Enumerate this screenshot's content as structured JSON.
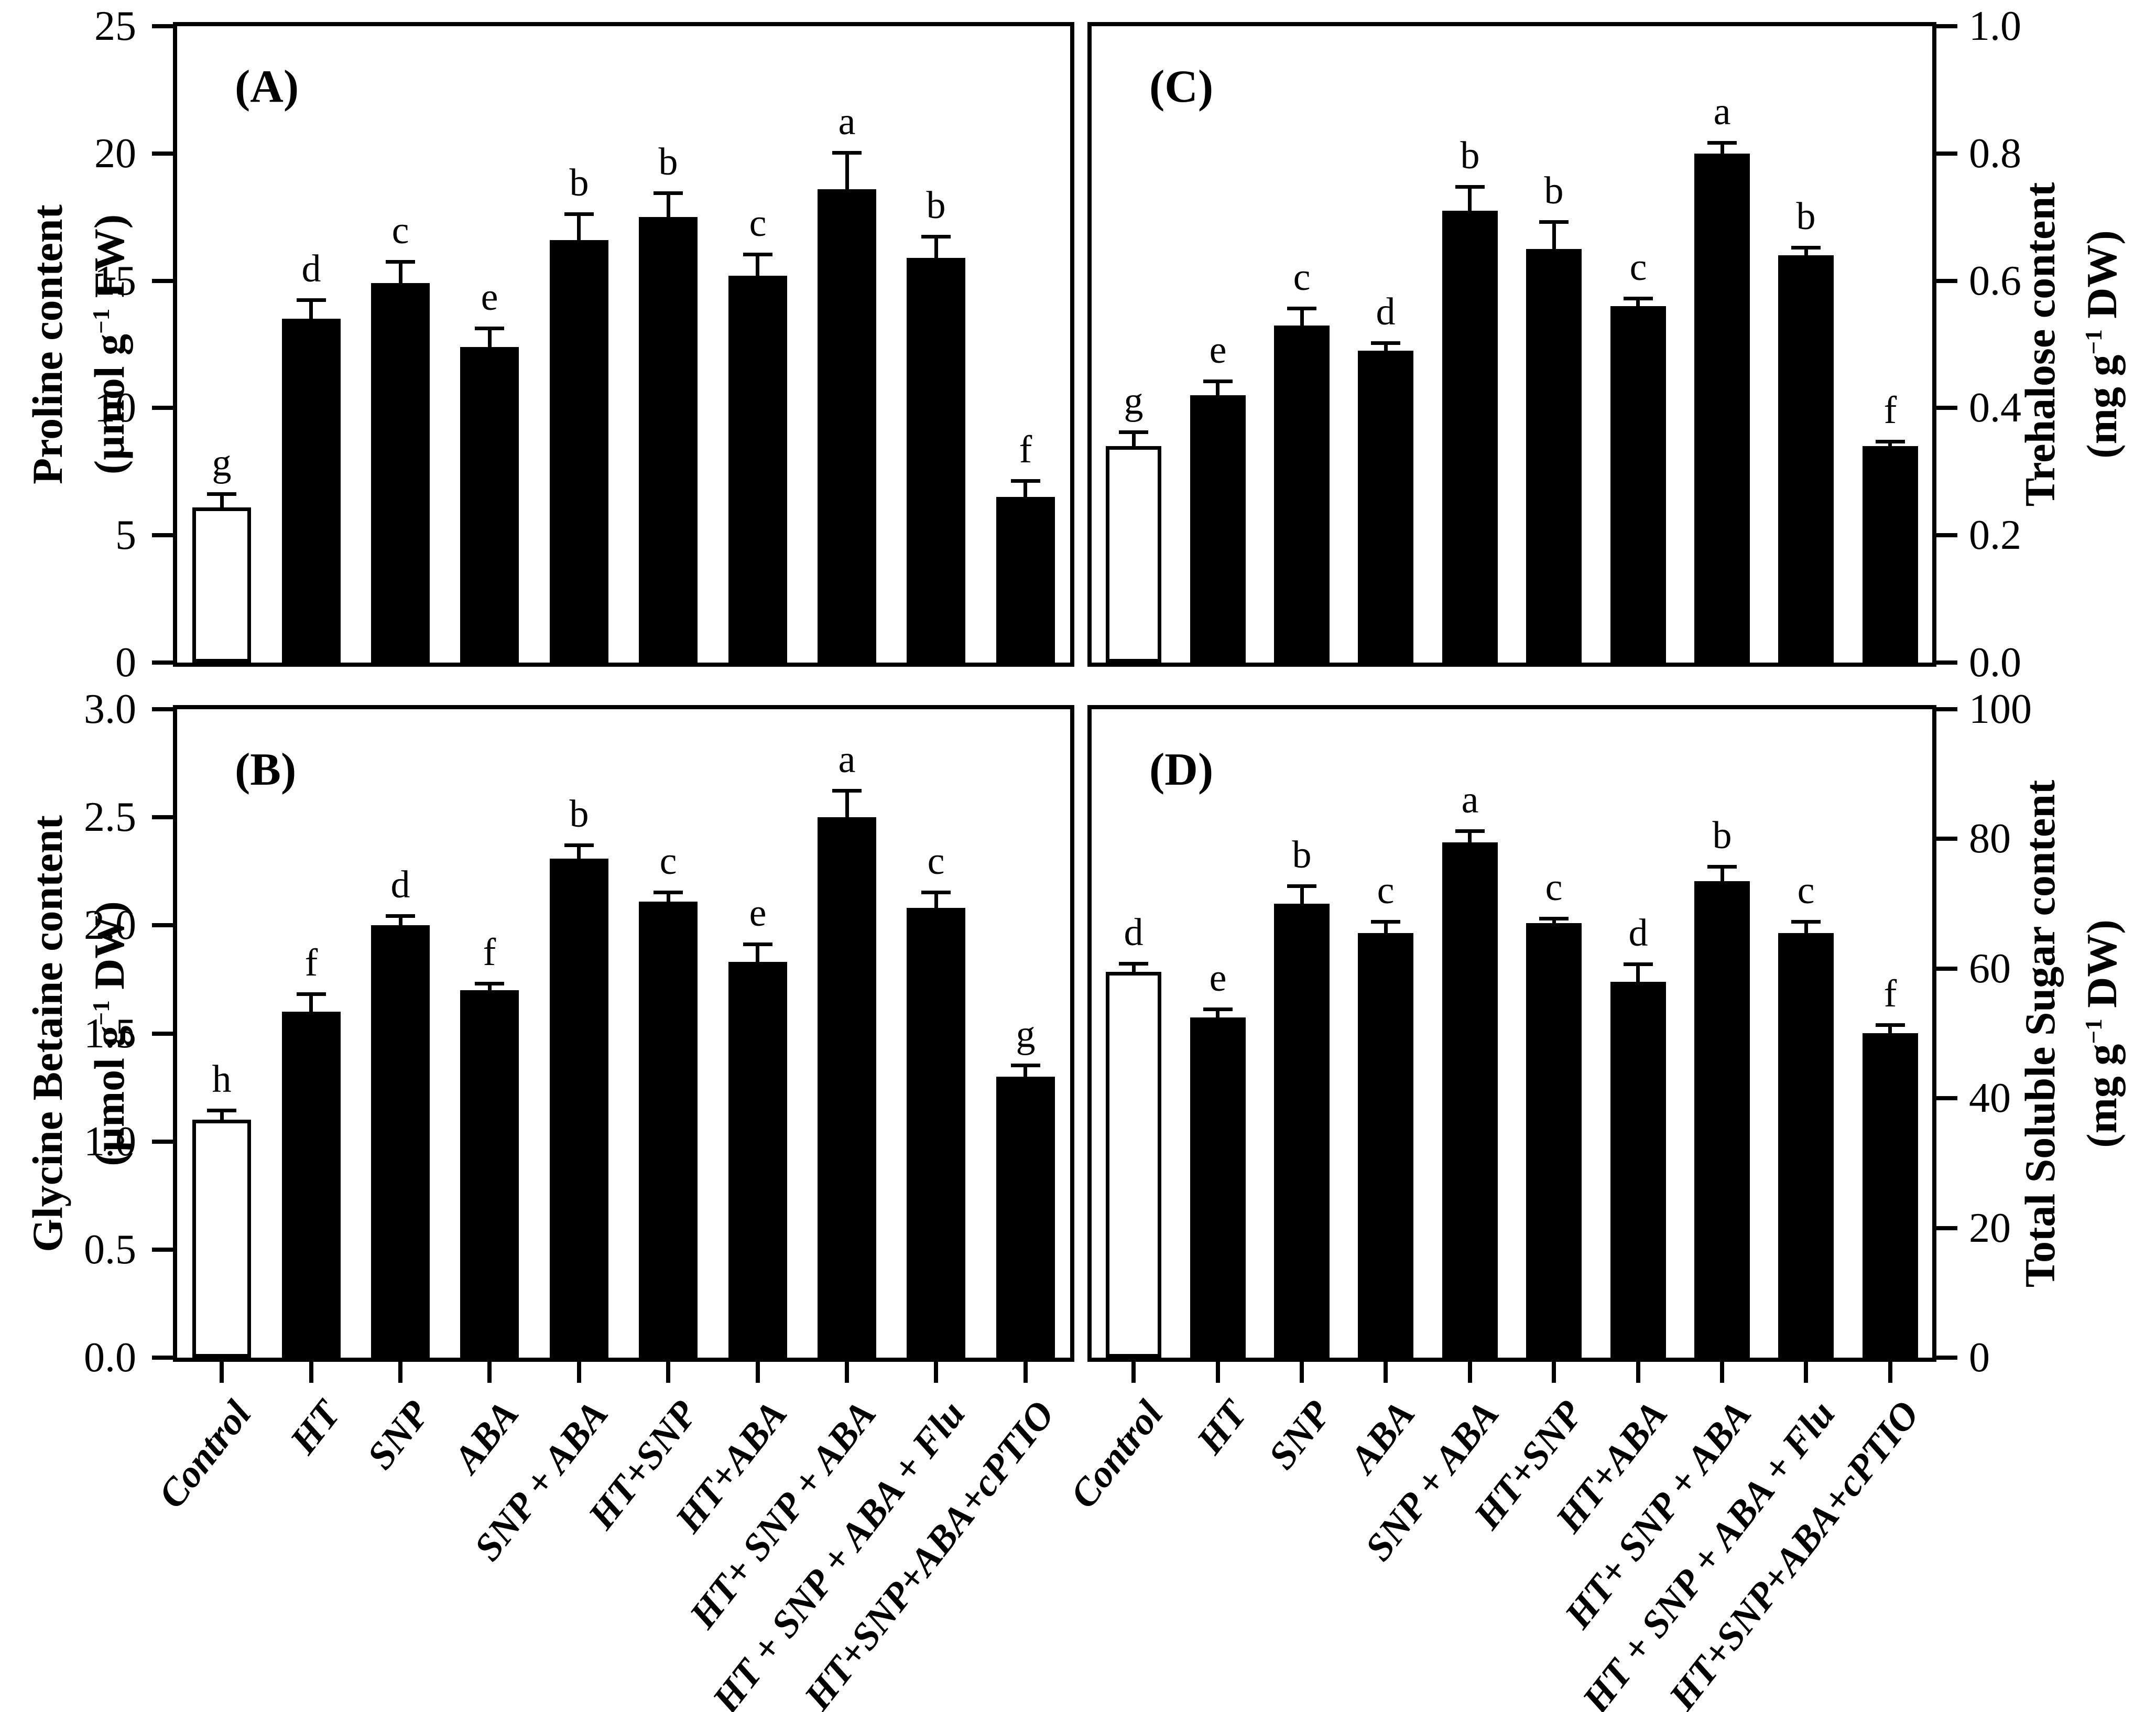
{
  "figure": {
    "background": "#ffffff",
    "frame_color": "#000000",
    "bar_fill": "#000000",
    "control_bar_fill": "#ffffff",
    "x_label_angle_deg": 52
  },
  "chart_data": [
    {
      "type": "bar",
      "id": "A",
      "panel_label": "(A)",
      "ylabel_line1": "Proline content",
      "unit_pre": "(µmol g",
      "unit_sup": "−1",
      "unit_post": " FW)",
      "axis_side": "left",
      "ylim": [
        0,
        25
      ],
      "tick_values": [
        0,
        5,
        10,
        15,
        20,
        25
      ],
      "tick_labels": [
        "0",
        "5",
        "10",
        "15",
        "20",
        "25"
      ],
      "categories": [
        "Control",
        "HT",
        "SNP",
        "ABA",
        "SNP + ABA",
        "HT+SNP",
        "HT+ABA",
        "HT+ SNP + ABA",
        "HT + SNP + ABA + Flu",
        "HT+SNP+ABA+cPTIO"
      ],
      "values": [
        6.1,
        13.5,
        14.9,
        12.4,
        16.6,
        17.5,
        15.2,
        18.6,
        15.9,
        6.5
      ],
      "errors": [
        0.6,
        0.8,
        0.9,
        0.8,
        1.1,
        1.0,
        0.9,
        1.5,
        0.9,
        0.7
      ],
      "sig_letters": [
        "g",
        "d",
        "c",
        "e",
        "b",
        "b",
        "c",
        "a",
        "b",
        "f"
      ],
      "grid": false,
      "legend": "none"
    },
    {
      "type": "bar",
      "id": "B",
      "panel_label": "(B)",
      "ylabel_line1": "Glycine Betaine content",
      "unit_pre": "(µmol g",
      "unit_sup": "−1",
      "unit_post": " DW)",
      "axis_side": "left",
      "ylim": [
        0,
        3.0
      ],
      "tick_values": [
        0,
        0.5,
        1.0,
        1.5,
        2.0,
        2.5,
        3.0
      ],
      "tick_labels": [
        "0.0",
        "0.5",
        "1.0",
        "1.5",
        "2.0",
        "2.5",
        "3.0"
      ],
      "categories": [
        "Control",
        "HT",
        "SNP",
        "ABA",
        "SNP + ABA",
        "HT+SNP",
        "HT+ABA",
        "HT+ SNP + ABA",
        "HT + SNP + ABA + Flu",
        "HT+SNP+ABA+cPTIO"
      ],
      "values": [
        1.1,
        1.6,
        2.0,
        1.7,
        2.31,
        2.11,
        1.83,
        2.5,
        2.08,
        1.3
      ],
      "errors": [
        0.05,
        0.09,
        0.05,
        0.04,
        0.07,
        0.05,
        0.09,
        0.13,
        0.08,
        0.06
      ],
      "sig_letters": [
        "h",
        "f",
        "d",
        "f",
        "b",
        "c",
        "e",
        "a",
        "c",
        "g"
      ],
      "grid": false,
      "legend": "none"
    },
    {
      "type": "bar",
      "id": "C",
      "panel_label": "(C)",
      "ylabel_line1": "Trehalose content",
      "unit_pre": "(mg g",
      "unit_sup": "−1",
      "unit_post": " DW)",
      "axis_side": "right",
      "ylim": [
        0,
        1.0
      ],
      "tick_values": [
        0,
        0.2,
        0.4,
        0.6,
        0.8,
        1.0
      ],
      "tick_labels": [
        "0.0",
        "0.2",
        "0.4",
        "0.6",
        "0.8",
        "1.0"
      ],
      "categories": [
        "Control",
        "HT",
        "SNP",
        "ABA",
        "SNP + ABA",
        "HT+SNP",
        "HT+ABA",
        "HT+ SNP + ABA",
        "HT + SNP + ABA + Flu",
        "HT+SNP+ABA+cPTIO"
      ],
      "values": [
        0.34,
        0.42,
        0.53,
        0.49,
        0.71,
        0.65,
        0.56,
        0.8,
        0.64,
        0.34
      ],
      "errors": [
        0.025,
        0.025,
        0.03,
        0.015,
        0.04,
        0.045,
        0.015,
        0.02,
        0.015,
        0.01
      ],
      "sig_letters": [
        "g",
        "e",
        "c",
        "d",
        "b",
        "b",
        "c",
        "a",
        "b",
        "f"
      ],
      "grid": false,
      "legend": "none"
    },
    {
      "type": "bar",
      "id": "D",
      "panel_label": "(D)",
      "ylabel_line1": "Total Soluble Sugar content",
      "unit_pre": "(mg g",
      "unit_sup": "−1",
      "unit_post": " DW)",
      "axis_side": "right",
      "ylim": [
        0,
        100
      ],
      "tick_values": [
        0,
        20,
        40,
        60,
        80,
        100
      ],
      "tick_labels": [
        "0",
        "20",
        "40",
        "60",
        "80",
        "100"
      ],
      "categories": [
        "Control",
        "HT",
        "SNP",
        "ABA",
        "SNP + ABA",
        "HT+SNP",
        "HT+ABA",
        "HT+ SNP + ABA",
        "HT + SNP + ABA + Flu",
        "HT+SNP+ABA+cPTIO"
      ],
      "values": [
        59.5,
        52.5,
        70,
        65.5,
        79.5,
        67,
        58,
        73.5,
        65.5,
        50
      ],
      "errors": [
        1.5,
        1.5,
        3,
        2,
        2,
        1,
        3,
        2.5,
        2,
        1.5
      ],
      "sig_letters": [
        "d",
        "e",
        "b",
        "c",
        "a",
        "c",
        "d",
        "b",
        "c",
        "f"
      ],
      "grid": false,
      "legend": "none"
    }
  ]
}
